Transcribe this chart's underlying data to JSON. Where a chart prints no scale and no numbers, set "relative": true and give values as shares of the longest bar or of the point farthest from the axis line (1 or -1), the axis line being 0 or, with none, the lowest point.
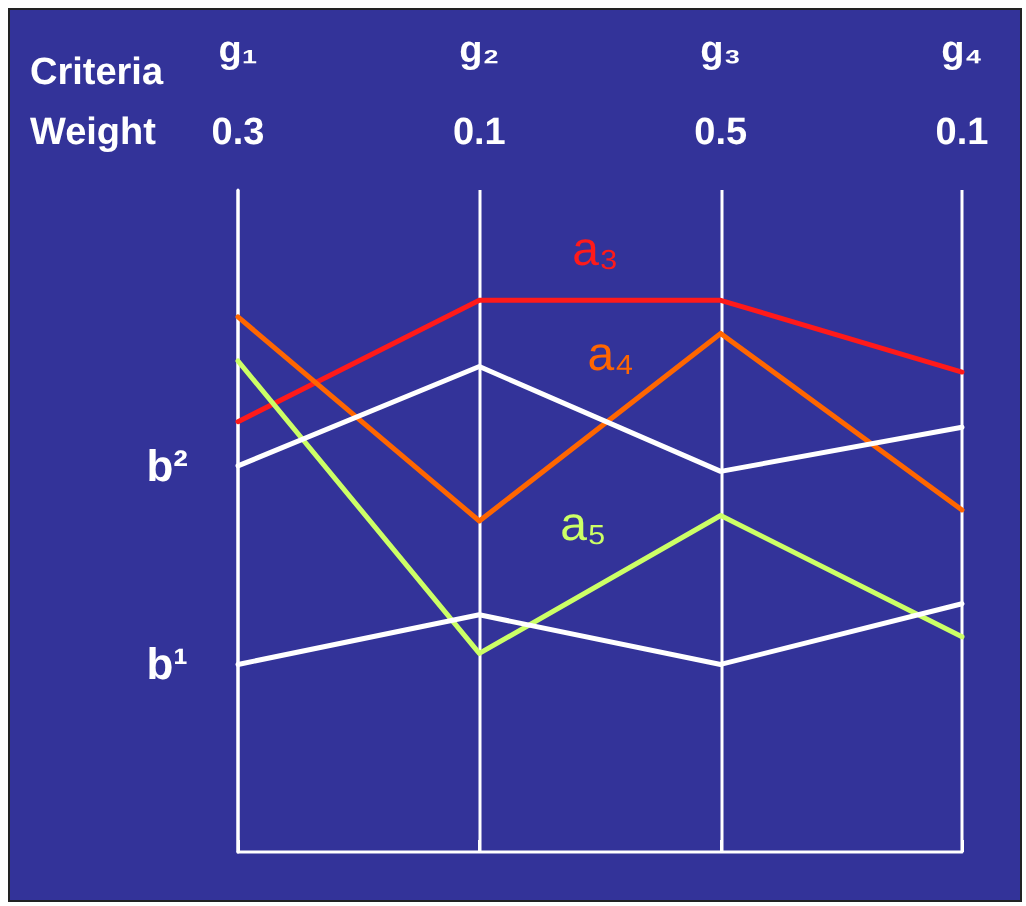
{
  "chart_data": {
    "type": "line",
    "relative": true,
    "xlabel": "Criteria",
    "categories": [
      "g₁",
      "g₂",
      "g₃",
      "g₄"
    ],
    "annotations": [
      "Weight",
      "0.3",
      "0.1",
      "0.5",
      "0.1"
    ],
    "series": [
      {
        "name": "a₃",
        "color": "#ff1a1a",
        "values": [
          0.78,
          1,
          1,
          0.87
        ]
      },
      {
        "name": "a₄",
        "color": "#ff6600",
        "values": [
          0.97,
          0.6,
          0.94,
          0.62
        ]
      },
      {
        "name": "a₅",
        "color": "#ccff66",
        "values": [
          0.89,
          0.36,
          0.61,
          0.39
        ]
      },
      {
        "name": "b²",
        "color": "#ffffff",
        "values": [
          0.7,
          0.88,
          0.69,
          0.77
        ]
      },
      {
        "name": "b¹",
        "color": "#ffffff",
        "values": [
          0.34,
          0.43,
          0.34,
          0.45
        ]
      }
    ],
    "grid": "x",
    "legend": false,
    "marker": "none",
    "line_style": "solid"
  }
}
